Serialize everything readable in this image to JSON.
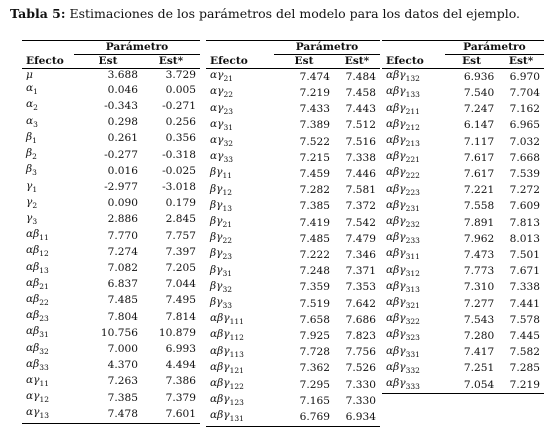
{
  "caption": {
    "label": "Tabla 5:",
    "text": "Estimaciones de los parámetros del modelo para los datos del ejemplo."
  },
  "header": {
    "group": "Parámetro",
    "effect": "Efecto",
    "est": "Est",
    "est_star": "Est*"
  },
  "tables": [
    {
      "rows": [
        {
          "effect": "μ",
          "est": "3.688",
          "est_star": "3.729"
        },
        {
          "effect": "α1",
          "est": "0.046",
          "est_star": "0.005"
        },
        {
          "effect": "α2",
          "est": "-0.343",
          "est_star": "-0.271"
        },
        {
          "effect": "α3",
          "est": "0.298",
          "est_star": "0.256"
        },
        {
          "effect": "β1",
          "est": "0.261",
          "est_star": "0.356"
        },
        {
          "effect": "β2",
          "est": "-0.277",
          "est_star": "-0.318"
        },
        {
          "effect": "β3",
          "est": "0.016",
          "est_star": "-0.025"
        },
        {
          "effect": "γ1",
          "est": "-2.977",
          "est_star": "-3.018"
        },
        {
          "effect": "γ2",
          "est": "0.090",
          "est_star": "0.179"
        },
        {
          "effect": "γ3",
          "est": "2.886",
          "est_star": "2.845"
        },
        {
          "effect": "αβ11",
          "est": "7.770",
          "est_star": "7.757"
        },
        {
          "effect": "αβ12",
          "est": "7.274",
          "est_star": "7.397"
        },
        {
          "effect": "αβ13",
          "est": "7.082",
          "est_star": "7.205"
        },
        {
          "effect": "αβ21",
          "est": "6.837",
          "est_star": "7.044"
        },
        {
          "effect": "αβ22",
          "est": "7.485",
          "est_star": "7.495"
        },
        {
          "effect": "αβ23",
          "est": "7.804",
          "est_star": "7.814"
        },
        {
          "effect": "αβ31",
          "est": "10.756",
          "est_star": "10.879"
        },
        {
          "effect": "αβ32",
          "est": "7.000",
          "est_star": "6.993"
        },
        {
          "effect": "αβ33",
          "est": "4.370",
          "est_star": "4.494"
        },
        {
          "effect": "αγ11",
          "est": "7.263",
          "est_star": "7.386"
        },
        {
          "effect": "αγ12",
          "est": "7.385",
          "est_star": "7.379"
        },
        {
          "effect": "αγ13",
          "est": "7.478",
          "est_star": "7.601"
        }
      ]
    },
    {
      "rows": [
        {
          "effect": "αγ21",
          "est": "7.474",
          "est_star": "7.484"
        },
        {
          "effect": "αγ22",
          "est": "7.219",
          "est_star": "7.458"
        },
        {
          "effect": "αγ23",
          "est": "7.433",
          "est_star": "7.443"
        },
        {
          "effect": "αγ31",
          "est": "7.389",
          "est_star": "7.512"
        },
        {
          "effect": "αγ32",
          "est": "7.522",
          "est_star": "7.516"
        },
        {
          "effect": "αγ33",
          "est": "7.215",
          "est_star": "7.338"
        },
        {
          "effect": "βγ11",
          "est": "7.459",
          "est_star": "7.446"
        },
        {
          "effect": "βγ12",
          "est": "7.282",
          "est_star": "7.581"
        },
        {
          "effect": "βγ13",
          "est": "7.385",
          "est_star": "7.372"
        },
        {
          "effect": "βγ21",
          "est": "7.419",
          "est_star": "7.542"
        },
        {
          "effect": "βγ22",
          "est": "7.485",
          "est_star": "7.479"
        },
        {
          "effect": "βγ23",
          "est": "7.222",
          "est_star": "7.346"
        },
        {
          "effect": "βγ31",
          "est": "7.248",
          "est_star": "7.371"
        },
        {
          "effect": "βγ32",
          "est": "7.359",
          "est_star": "7.353"
        },
        {
          "effect": "βγ33",
          "est": "7.519",
          "est_star": "7.642"
        },
        {
          "effect": "αβγ111",
          "est": "7.658",
          "est_star": "7.686"
        },
        {
          "effect": "αβγ112",
          "est": "7.925",
          "est_star": "7.823"
        },
        {
          "effect": "αβγ113",
          "est": "7.728",
          "est_star": "7.756"
        },
        {
          "effect": "αβγ121",
          "est": "7.362",
          "est_star": "7.526"
        },
        {
          "effect": "αβγ122",
          "est": "7.295",
          "est_star": "7.330"
        },
        {
          "effect": "αβγ123",
          "est": "7.165",
          "est_star": "7.330"
        },
        {
          "effect": "αβγ131",
          "est": "6.769",
          "est_star": "6.934"
        }
      ]
    },
    {
      "rows": [
        {
          "effect": "αβγ132",
          "est": "6.936",
          "est_star": "6.970"
        },
        {
          "effect": "αβγ133",
          "est": "7.540",
          "est_star": "7.704"
        },
        {
          "effect": "αβγ211",
          "est": "7.247",
          "est_star": "7.162"
        },
        {
          "effect": "αβγ212",
          "est": "6.147",
          "est_star": "6.965"
        },
        {
          "effect": "αβγ213",
          "est": "7.117",
          "est_star": "7.032"
        },
        {
          "effect": "αβγ221",
          "est": "7.617",
          "est_star": "7.668"
        },
        {
          "effect": "αβγ222",
          "est": "7.617",
          "est_star": "7.539"
        },
        {
          "effect": "αβγ223",
          "est": "7.221",
          "est_star": "7.272"
        },
        {
          "effect": "αβγ231",
          "est": "7.558",
          "est_star": "7.609"
        },
        {
          "effect": "αβγ232",
          "est": "7.891",
          "est_star": "7.813"
        },
        {
          "effect": "αβγ233",
          "est": "7.962",
          "est_star": "8.013"
        },
        {
          "effect": "αβγ311",
          "est": "7.473",
          "est_star": "7.501"
        },
        {
          "effect": "αβγ312",
          "est": "7.773",
          "est_star": "7.671"
        },
        {
          "effect": "αβγ313",
          "est": "7.310",
          "est_star": "7.338"
        },
        {
          "effect": "αβγ321",
          "est": "7.277",
          "est_star": "7.441"
        },
        {
          "effect": "αβγ322",
          "est": "7.543",
          "est_star": "7.578"
        },
        {
          "effect": "αβγ323",
          "est": "7.280",
          "est_star": "7.445"
        },
        {
          "effect": "αβγ331",
          "est": "7.417",
          "est_star": "7.582"
        },
        {
          "effect": "αβγ332",
          "est": "7.251",
          "est_star": "7.285"
        },
        {
          "effect": "αβγ333",
          "est": "7.054",
          "est_star": "7.219"
        }
      ]
    }
  ]
}
